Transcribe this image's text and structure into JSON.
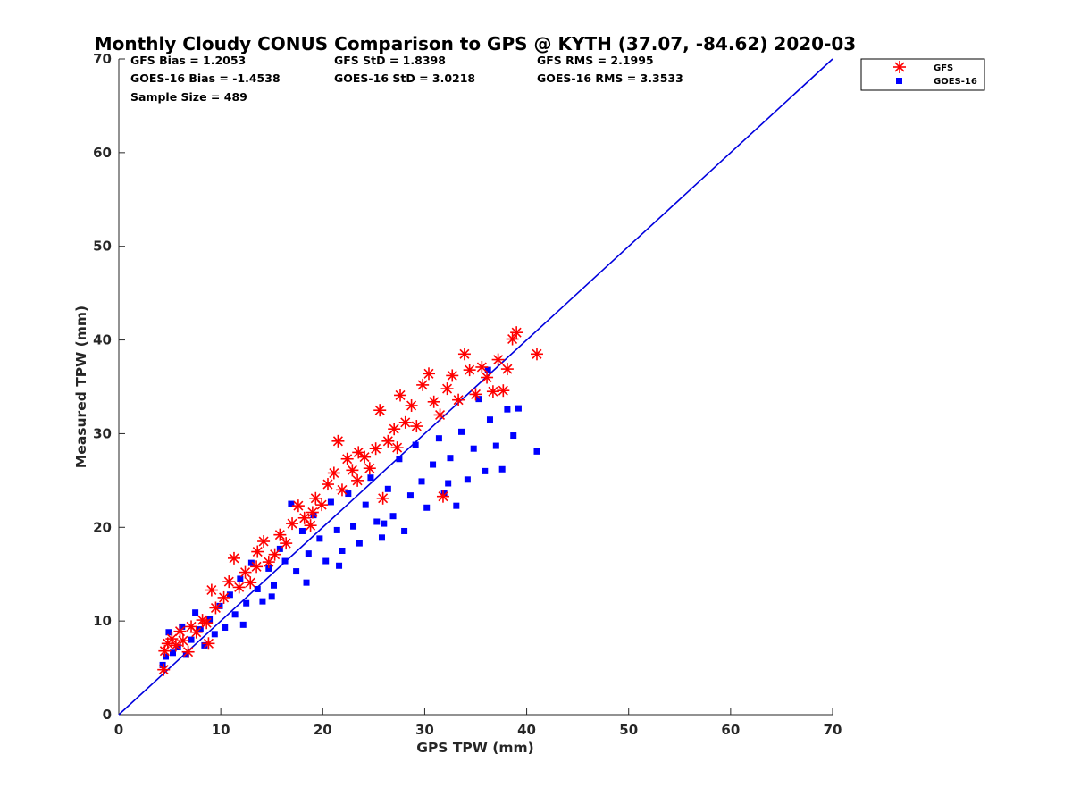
{
  "chart_data": {
    "type": "scatter",
    "title": "Monthly Cloudy CONUS Comparison to GPS @ KYTH (37.07, -84.62) 2020-03",
    "xlabel": "GPS TPW (mm)",
    "ylabel": "Measured TPW (mm)",
    "xlim": [
      0,
      70
    ],
    "ylim": [
      0,
      70
    ],
    "xticks": [
      0,
      10,
      20,
      30,
      40,
      50,
      60,
      70
    ],
    "yticks": [
      0,
      10,
      20,
      30,
      40,
      50,
      60,
      70
    ],
    "grid": false,
    "legend_position": "top-right",
    "stats": [
      [
        "GFS Bias = 1.2053",
        "GFS StD = 1.8398",
        "GFS RMS = 2.1995"
      ],
      [
        "GOES-16 Bias = -1.4538",
        "GOES-16 StD = 3.0218",
        "GOES-16 RMS = 3.3533"
      ],
      [
        "Sample Size = 489"
      ]
    ],
    "reference_line": {
      "from": [
        0,
        0
      ],
      "to": [
        70,
        70
      ],
      "color": "#0000dd"
    },
    "series": [
      {
        "name": "GFS",
        "marker": "asterisk",
        "color": "#ff0000",
        "points": [
          [
            4.4,
            4.8
          ],
          [
            4.5,
            6.8
          ],
          [
            4.8,
            7.6
          ],
          [
            5.2,
            8.1
          ],
          [
            5.6,
            7.4
          ],
          [
            6.0,
            8.9
          ],
          [
            6.3,
            7.9
          ],
          [
            6.8,
            6.7
          ],
          [
            7.1,
            9.4
          ],
          [
            7.6,
            8.8
          ],
          [
            8.2,
            10.1
          ],
          [
            8.8,
            7.6
          ],
          [
            9.1,
            13.3
          ],
          [
            9.5,
            11.4
          ],
          [
            10.3,
            12.5
          ],
          [
            10.8,
            14.2
          ],
          [
            11.3,
            16.7
          ],
          [
            11.8,
            13.6
          ],
          [
            12.4,
            15.2
          ],
          [
            12.9,
            14.1
          ],
          [
            13.6,
            17.4
          ],
          [
            14.2,
            18.5
          ],
          [
            14.7,
            16.3
          ],
          [
            15.3,
            17.1
          ],
          [
            15.8,
            19.2
          ],
          [
            16.4,
            18.3
          ],
          [
            17.0,
            20.4
          ],
          [
            17.6,
            22.3
          ],
          [
            18.2,
            21.0
          ],
          [
            18.8,
            20.2
          ],
          [
            19.3,
            23.1
          ],
          [
            19.9,
            22.4
          ],
          [
            20.5,
            24.6
          ],
          [
            21.1,
            25.8
          ],
          [
            21.5,
            29.2
          ],
          [
            21.9,
            24.0
          ],
          [
            22.4,
            27.3
          ],
          [
            22.9,
            26.1
          ],
          [
            23.5,
            28.0
          ],
          [
            24.1,
            27.5
          ],
          [
            24.6,
            26.3
          ],
          [
            25.2,
            28.4
          ],
          [
            25.6,
            32.5
          ],
          [
            25.9,
            23.1
          ],
          [
            26.4,
            29.2
          ],
          [
            27.0,
            30.5
          ],
          [
            27.6,
            34.1
          ],
          [
            28.1,
            31.2
          ],
          [
            28.7,
            33.0
          ],
          [
            29.2,
            30.8
          ],
          [
            29.8,
            35.2
          ],
          [
            30.4,
            36.4
          ],
          [
            30.9,
            33.4
          ],
          [
            31.5,
            32.0
          ],
          [
            31.8,
            23.3
          ],
          [
            32.2,
            34.8
          ],
          [
            32.7,
            36.2
          ],
          [
            33.3,
            33.6
          ],
          [
            33.9,
            38.5
          ],
          [
            34.4,
            36.8
          ],
          [
            35.0,
            34.2
          ],
          [
            35.6,
            37.1
          ],
          [
            36.1,
            36.0
          ],
          [
            36.7,
            34.5
          ],
          [
            37.2,
            37.9
          ],
          [
            37.7,
            34.6
          ],
          [
            38.1,
            36.9
          ],
          [
            38.6,
            40.1
          ],
          [
            39.0,
            40.8
          ],
          [
            41.0,
            38.5
          ],
          [
            23.4,
            25.0
          ],
          [
            19.0,
            21.6
          ],
          [
            13.5,
            15.8
          ],
          [
            8.6,
            9.8
          ],
          [
            27.3,
            28.5
          ]
        ]
      },
      {
        "name": "GOES-16",
        "marker": "square",
        "color": "#0000ff",
        "points": [
          [
            4.3,
            5.3
          ],
          [
            4.6,
            6.2
          ],
          [
            4.9,
            8.8
          ],
          [
            5.3,
            6.6
          ],
          [
            5.8,
            7.2
          ],
          [
            6.2,
            9.4
          ],
          [
            6.6,
            6.4
          ],
          [
            7.1,
            8.0
          ],
          [
            7.5,
            10.9
          ],
          [
            8.0,
            9.1
          ],
          [
            8.4,
            7.4
          ],
          [
            8.9,
            10.2
          ],
          [
            9.4,
            8.6
          ],
          [
            9.9,
            11.6
          ],
          [
            10.4,
            9.3
          ],
          [
            10.9,
            12.8
          ],
          [
            11.4,
            10.7
          ],
          [
            11.9,
            14.5
          ],
          [
            12.5,
            11.9
          ],
          [
            13.0,
            16.2
          ],
          [
            13.6,
            13.4
          ],
          [
            14.1,
            12.1
          ],
          [
            14.7,
            15.6
          ],
          [
            15.2,
            13.8
          ],
          [
            15.8,
            17.7
          ],
          [
            16.3,
            16.4
          ],
          [
            16.9,
            22.5
          ],
          [
            17.4,
            15.3
          ],
          [
            18.0,
            19.6
          ],
          [
            18.6,
            17.2
          ],
          [
            19.1,
            21.3
          ],
          [
            19.7,
            18.8
          ],
          [
            20.3,
            16.4
          ],
          [
            20.8,
            22.7
          ],
          [
            21.4,
            19.7
          ],
          [
            21.9,
            17.5
          ],
          [
            22.5,
            23.6
          ],
          [
            23.0,
            20.1
          ],
          [
            23.6,
            18.3
          ],
          [
            24.2,
            22.4
          ],
          [
            24.7,
            25.3
          ],
          [
            25.3,
            20.6
          ],
          [
            25.8,
            18.9
          ],
          [
            26.4,
            24.1
          ],
          [
            26.9,
            21.2
          ],
          [
            27.5,
            27.3
          ],
          [
            28.0,
            19.6
          ],
          [
            28.6,
            23.4
          ],
          [
            29.1,
            28.8
          ],
          [
            29.7,
            24.9
          ],
          [
            30.2,
            22.1
          ],
          [
            30.8,
            26.7
          ],
          [
            31.4,
            29.5
          ],
          [
            31.9,
            23.6
          ],
          [
            32.5,
            27.4
          ],
          [
            33.1,
            22.3
          ],
          [
            33.6,
            30.2
          ],
          [
            34.2,
            25.1
          ],
          [
            34.8,
            28.4
          ],
          [
            35.3,
            33.7
          ],
          [
            35.9,
            26.0
          ],
          [
            36.4,
            31.5
          ],
          [
            37.0,
            28.7
          ],
          [
            37.6,
            26.2
          ],
          [
            38.1,
            32.6
          ],
          [
            38.7,
            29.8
          ],
          [
            39.2,
            32.7
          ],
          [
            41.0,
            28.1
          ],
          [
            36.2,
            36.8
          ],
          [
            15.0,
            12.6
          ],
          [
            12.2,
            9.6
          ],
          [
            18.4,
            14.1
          ],
          [
            21.6,
            15.9
          ],
          [
            26.0,
            20.4
          ],
          [
            32.3,
            24.7
          ]
        ]
      }
    ]
  }
}
